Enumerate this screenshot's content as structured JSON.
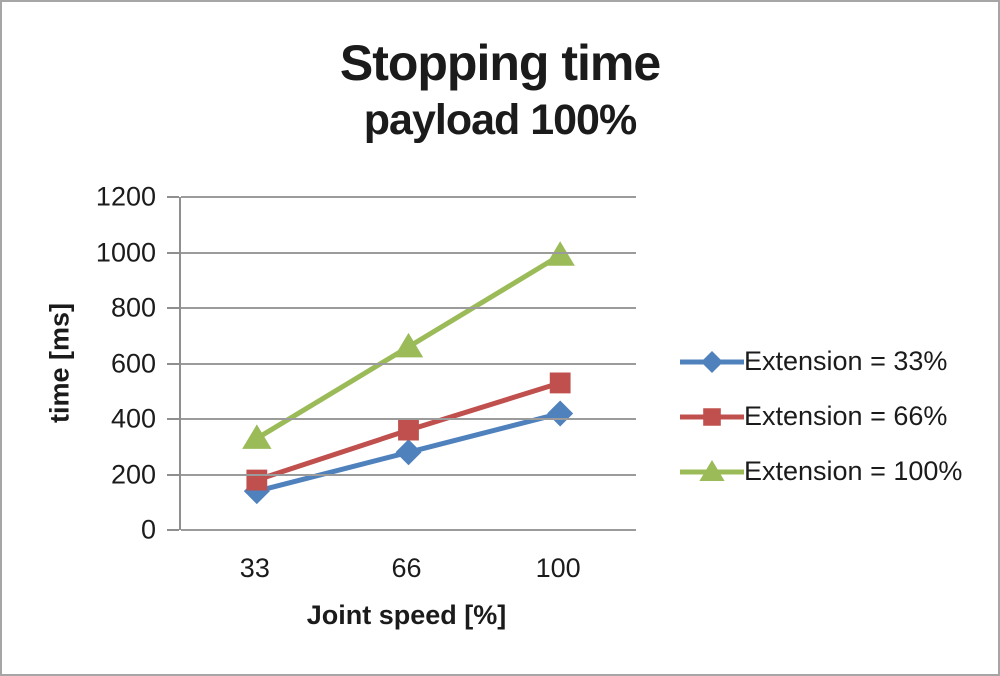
{
  "chart_data": {
    "type": "line",
    "title": "Stopping time",
    "subtitle": "payload 100%",
    "xlabel": "Joint speed [%]",
    "ylabel": "time [ms]",
    "categories": [
      "33",
      "66",
      "100"
    ],
    "series": [
      {
        "name": "Extension = 33%",
        "marker": "diamond",
        "color": "#4F81BD",
        "values": [
          140,
          280,
          420
        ]
      },
      {
        "name": "Extension = 66%",
        "marker": "square",
        "color": "#C0504D",
        "values": [
          180,
          360,
          530
        ]
      },
      {
        "name": "Extension = 100%",
        "marker": "triangle",
        "color": "#9BBB59",
        "values": [
          330,
          660,
          990
        ]
      }
    ],
    "ylim": [
      0,
      1200
    ],
    "ytick_step": 200,
    "yticks": [
      0,
      200,
      400,
      600,
      800,
      1000,
      1200
    ],
    "grid": true,
    "legend_position": "right"
  },
  "colors": {
    "gridline": "#9b9b9b",
    "axis": "#8f8f8f",
    "frame_border": "#a6a6a6",
    "text": "#1b1b1b"
  }
}
